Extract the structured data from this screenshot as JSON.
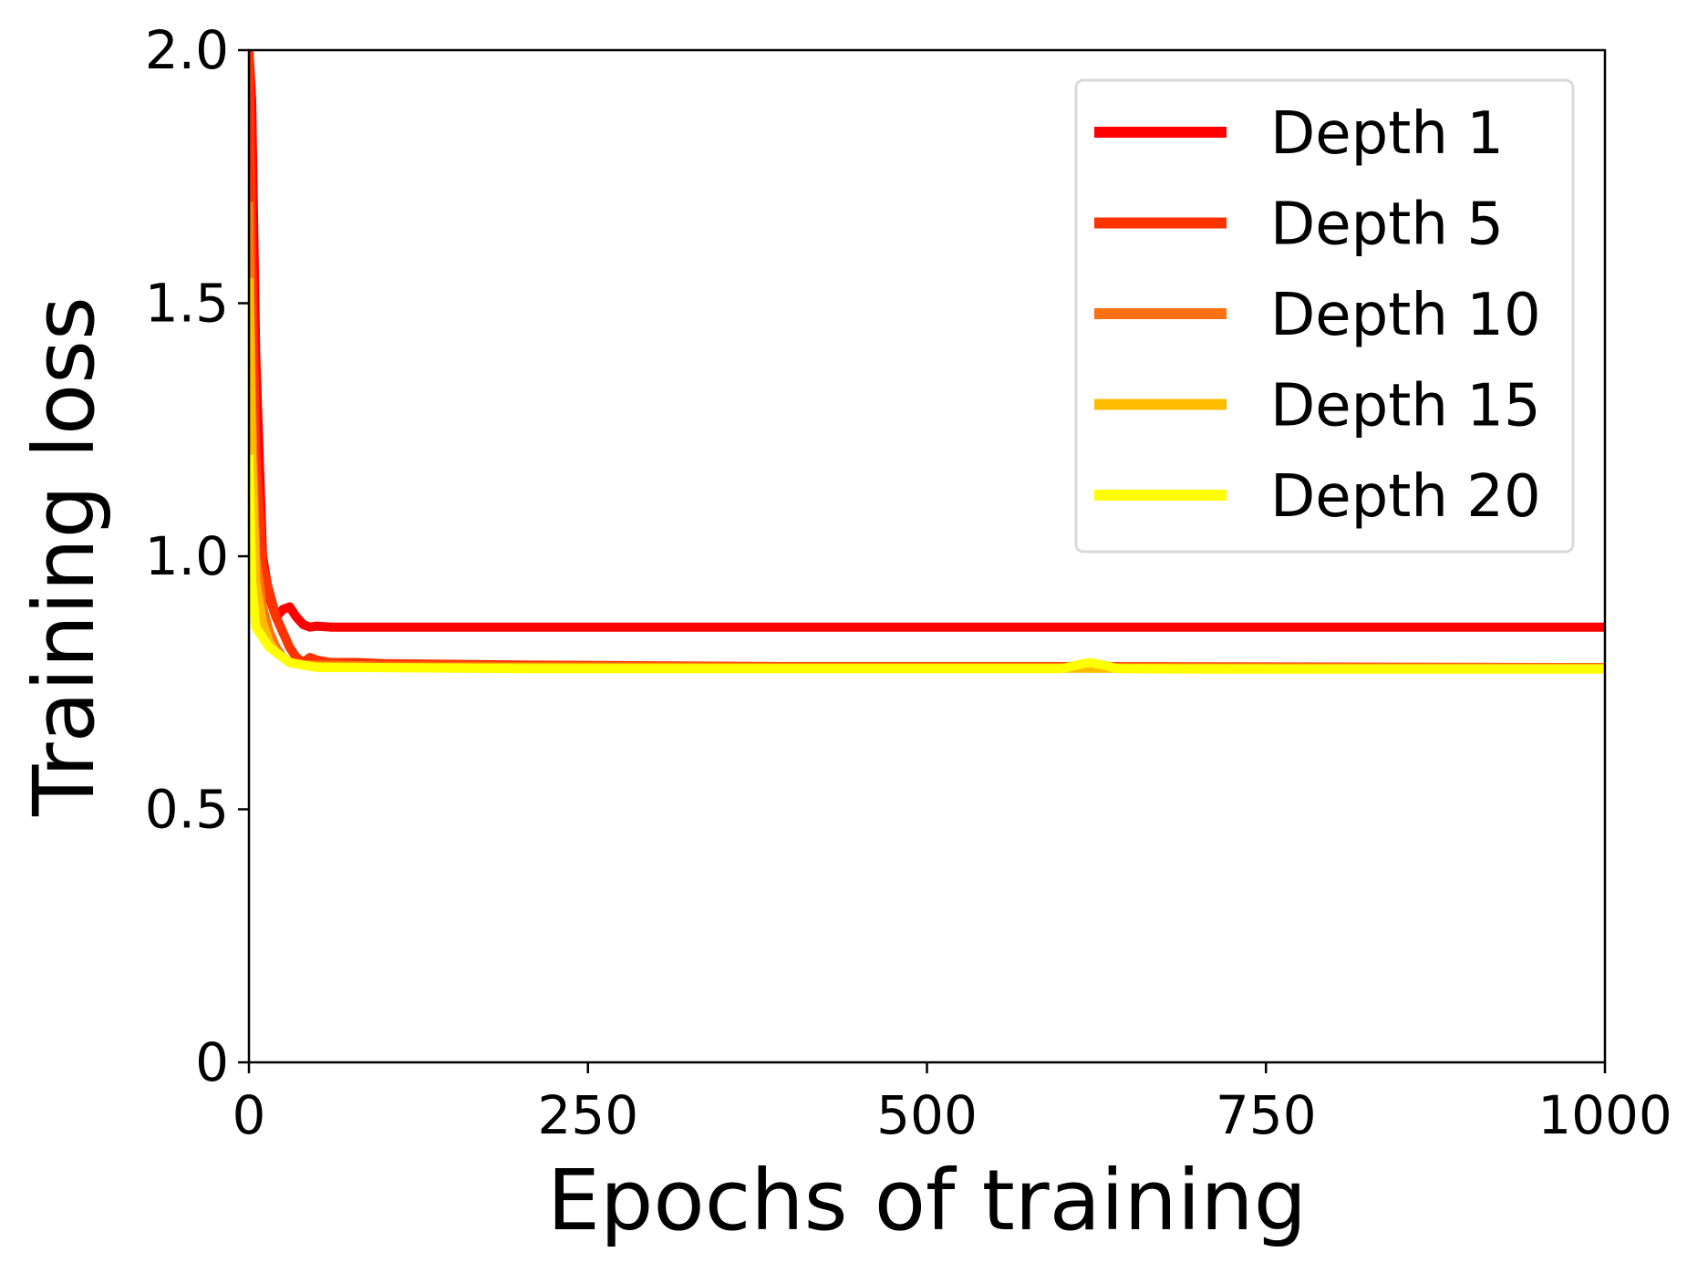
{
  "chart_data": {
    "type": "line",
    "title": "",
    "xlabel": "Epochs of training",
    "ylabel": "Training loss",
    "xlim": [
      0,
      1000
    ],
    "ylim": [
      0,
      2.0
    ],
    "xticks": [
      0,
      250,
      500,
      750,
      1000
    ],
    "xtick_labels": [
      "0",
      "250",
      "500",
      "750",
      "1000"
    ],
    "yticks": [
      0,
      0.5,
      1.0,
      1.5,
      2.0
    ],
    "ytick_labels": [
      "0",
      "0.5",
      "1.0",
      "1.5",
      "2.0"
    ],
    "grid": false,
    "legend_position": "top-right",
    "series": [
      {
        "name": "Depth 1",
        "color": "#ff0000",
        "x": [
          0,
          2,
          5,
          10,
          15,
          20,
          25,
          30,
          35,
          40,
          45,
          50,
          60,
          80,
          100,
          200,
          400,
          600,
          800,
          1000
        ],
        "y": [
          2.0,
          1.9,
          1.4,
          1.0,
          0.92,
          0.88,
          0.895,
          0.9,
          0.88,
          0.865,
          0.86,
          0.862,
          0.86,
          0.86,
          0.86,
          0.86,
          0.86,
          0.86,
          0.86,
          0.86
        ]
      },
      {
        "name": "Depth 5",
        "color": "#ff3300",
        "x": [
          0,
          2,
          5,
          10,
          15,
          20,
          25,
          30,
          35,
          40,
          45,
          50,
          60,
          80,
          100,
          200,
          400,
          600,
          800,
          1000
        ],
        "y": [
          2.0,
          1.6,
          1.2,
          0.98,
          0.93,
          0.88,
          0.85,
          0.82,
          0.8,
          0.79,
          0.8,
          0.795,
          0.79,
          0.79,
          0.788,
          0.785,
          0.782,
          0.782,
          0.781,
          0.78
        ]
      },
      {
        "name": "Depth 10",
        "color": "#ff7010",
        "x": [
          0,
          2,
          5,
          10,
          15,
          20,
          25,
          30,
          40,
          50,
          60,
          80,
          100,
          200,
          400,
          600,
          800,
          1000
        ],
        "y": [
          1.7,
          1.3,
          1.0,
          0.9,
          0.85,
          0.82,
          0.8,
          0.79,
          0.785,
          0.785,
          0.785,
          0.784,
          0.783,
          0.782,
          0.781,
          0.781,
          0.78,
          0.78
        ]
      },
      {
        "name": "Depth 15",
        "color": "#ffbb00",
        "x": [
          0,
          2,
          5,
          10,
          15,
          20,
          25,
          30,
          40,
          50,
          60,
          80,
          100,
          200,
          400,
          600,
          800,
          1000
        ],
        "y": [
          1.55,
          1.2,
          0.95,
          0.87,
          0.83,
          0.81,
          0.8,
          0.79,
          0.785,
          0.782,
          0.782,
          0.781,
          0.78,
          0.78,
          0.779,
          0.779,
          0.778,
          0.778
        ]
      },
      {
        "name": "Depth 20",
        "color": "#ffff00",
        "x": [
          0,
          2,
          5,
          10,
          15,
          20,
          25,
          30,
          40,
          50,
          60,
          100,
          200,
          400,
          600,
          610,
          620,
          630,
          640,
          700,
          800,
          1000
        ],
        "y": [
          1.2,
          0.95,
          0.86,
          0.84,
          0.82,
          0.81,
          0.8,
          0.79,
          0.785,
          0.78,
          0.78,
          0.78,
          0.778,
          0.778,
          0.778,
          0.785,
          0.79,
          0.785,
          0.778,
          0.777,
          0.777,
          0.777
        ]
      }
    ]
  }
}
